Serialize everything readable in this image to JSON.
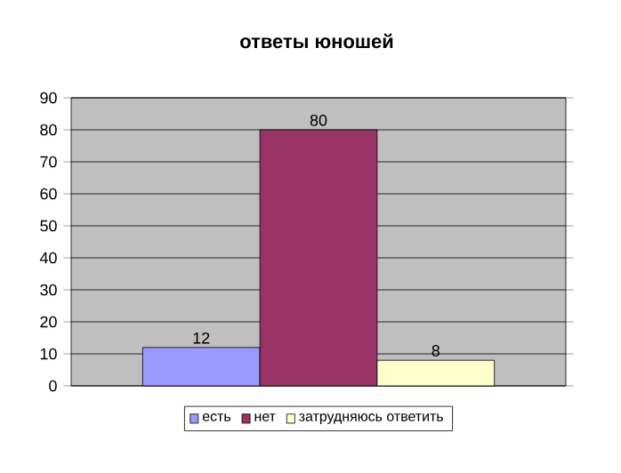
{
  "chart_data": {
    "type": "bar",
    "title": "ответы юношей",
    "categories": [
      null
    ],
    "series": [
      {
        "name": "есть",
        "color": "#9999ff",
        "values": [
          12
        ]
      },
      {
        "name": "нет",
        "color": "#993366",
        "values": [
          80
        ]
      },
      {
        "name": "затрудняюсь ответить",
        "color": "#ffffcc",
        "values": [
          8
        ]
      }
    ],
    "ylim": [
      0,
      90
    ],
    "yticks": [
      0,
      10,
      20,
      30,
      40,
      50,
      60,
      70,
      80,
      90
    ],
    "grid": "y",
    "legend": "bottom",
    "data_labels": true
  }
}
